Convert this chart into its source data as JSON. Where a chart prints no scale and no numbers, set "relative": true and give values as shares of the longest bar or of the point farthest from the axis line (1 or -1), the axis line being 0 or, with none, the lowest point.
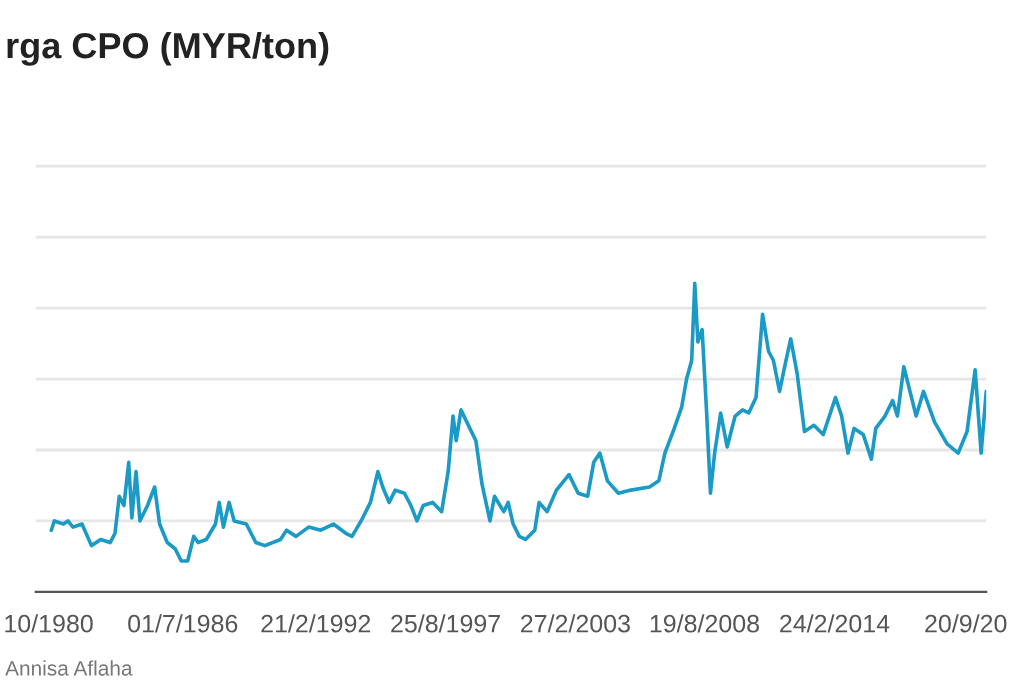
{
  "chart_data": {
    "type": "line",
    "title": "rga CPO (MYR/ton)",
    "relative": true,
    "grid": "y",
    "legend": false,
    "annotations": [
      "Annisa Aflaha"
    ],
    "xlim": [
      "1980-04-05",
      "2020-08-03"
    ],
    "xticks": [
      {
        "value": "1980-10-20",
        "label": "10/1980"
      },
      {
        "value": "1986-07-01",
        "label": "01/7/1986"
      },
      {
        "value": "1992-02-21",
        "label": "21/2/1992"
      },
      {
        "value": "1997-08-25",
        "label": "25/8/1997"
      },
      {
        "value": "2003-02-27",
        "label": "27/2/2003"
      },
      {
        "value": "2008-08-19",
        "label": "19/8/2008"
      },
      {
        "value": "2014-02-24",
        "label": "24/2/2014"
      },
      {
        "value": "2019-09-20",
        "label": "20/9/20"
      }
    ],
    "x": [
      "1980-12-02",
      "1981-01-17",
      "1981-06-08",
      "1981-08-16",
      "1981-11-03",
      "1982-03-22",
      "1982-08-16",
      "1983-01-07",
      "1983-06-02",
      "1983-08-16",
      "1983-10-21",
      "1984-01-01",
      "1984-03-15",
      "1984-05-03",
      "1984-07-07",
      "1984-09-05",
      "1985-01-01",
      "1985-04-21",
      "1985-07-07",
      "1985-11-03",
      "1986-03-05",
      "1986-06-08",
      "1986-09-15",
      "1986-12-18",
      "1987-02-23",
      "1987-07-01",
      "1987-11-20",
      "1988-01-17",
      "1988-03-22",
      "1988-06-18",
      "1988-09-05",
      "1989-03-12",
      "1989-08-06",
      "1989-12-25",
      "1990-08-23",
      "1990-11-26",
      "1991-04-21",
      "1991-11-03",
      "1992-05-09",
      "1992-11-20",
      "1993-06-02",
      "1993-09-05",
      "1994-01-24",
      "1994-06-18",
      "1994-10-11",
      "1994-12-25",
      "1995-04-04",
      "1995-07-07",
      "1995-11-26",
      "1996-03-05",
      "1996-06-08",
      "1996-09-12",
      "1997-02-06",
      "1997-06-25",
      "1997-10-04",
      "1997-12-18",
      "1998-02-06",
      "1998-04-21",
      "1998-09-05",
      "1998-12-08",
      "1999-03-12",
      "1999-07-14",
      "1999-09-22",
      "2000-02-13",
      "2000-04-21",
      "2000-07-07",
      "2000-10-11",
      "2001-01-14",
      "2001-06-08",
      "2001-08-13",
      "2001-12-15",
      "2002-05-09",
      "2002-11-20",
      "2003-04-11",
      "2003-09-05",
      "2003-12-08",
      "2004-03-12",
      "2004-07-07",
      "2004-12-25",
      "2005-07-07",
      "2006-04-21",
      "2006-09-12",
      "2006-12-15",
      "2007-05-09",
      "2007-09-02",
      "2007-11-16",
      "2008-02-03",
      "2008-03-22",
      "2008-05-09",
      "2008-07-14",
      "2008-09-22",
      "2008-11-20",
      "2009-01-24",
      "2009-04-27",
      "2009-08-06",
      "2009-12-08",
      "2010-04-01",
      "2010-07-07",
      "2010-10-27",
      "2011-02-06",
      "2011-05-09",
      "2011-07-24",
      "2011-10-27",
      "2012-02-03",
      "2012-04-17",
      "2012-07-24",
      "2012-11-16",
      "2013-04-11",
      "2013-09-02",
      "2014-03-12",
      "2014-06-15",
      "2014-09-22",
      "2014-12-25",
      "2015-05-16",
      "2015-09-18",
      "2015-11-26",
      "2016-04-17",
      "2016-08-13",
      "2016-10-27",
      "2017-02-03",
      "2017-05-09",
      "2017-08-13",
      "2017-12-05",
      "2018-05-26",
      "2018-12-05",
      "2019-05-26",
      "2019-10-11",
      "2020-02-13",
      "2020-05-16",
      "2020-08-03"
    ],
    "series": [
      {
        "color": "#1b9ac6",
        "values": [
          0.2,
          0.23,
          0.22,
          0.23,
          0.21,
          0.22,
          0.15,
          0.17,
          0.16,
          0.19,
          0.31,
          0.28,
          0.42,
          0.24,
          0.39,
          0.23,
          0.28,
          0.34,
          0.22,
          0.16,
          0.14,
          0.1,
          0.1,
          0.18,
          0.16,
          0.17,
          0.22,
          0.29,
          0.21,
          0.29,
          0.23,
          0.22,
          0.16,
          0.15,
          0.17,
          0.2,
          0.18,
          0.21,
          0.2,
          0.22,
          0.19,
          0.18,
          0.23,
          0.29,
          0.39,
          0.34,
          0.29,
          0.33,
          0.32,
          0.28,
          0.23,
          0.28,
          0.29,
          0.26,
          0.39,
          0.57,
          0.49,
          0.59,
          0.53,
          0.49,
          0.35,
          0.23,
          0.31,
          0.26,
          0.29,
          0.22,
          0.18,
          0.17,
          0.2,
          0.29,
          0.26,
          0.33,
          0.38,
          0.32,
          0.31,
          0.42,
          0.45,
          0.36,
          0.32,
          0.33,
          0.34,
          0.36,
          0.45,
          0.53,
          0.6,
          0.69,
          0.75,
          1,
          0.81,
          0.85,
          0.58,
          0.32,
          0.45,
          0.58,
          0.47,
          0.57,
          0.59,
          0.58,
          0.63,
          0.9,
          0.78,
          0.75,
          0.65,
          0.75,
          0.82,
          0.71,
          0.52,
          0.54,
          0.51,
          0.63,
          0.57,
          0.45,
          0.53,
          0.51,
          0.43,
          0.53,
          0.57,
          0.62,
          0.57,
          0.73,
          0.65,
          0.57,
          0.65,
          0.55,
          0.48,
          0.45,
          0.52,
          0.72,
          0.45,
          0.65
        ]
      }
    ]
  }
}
